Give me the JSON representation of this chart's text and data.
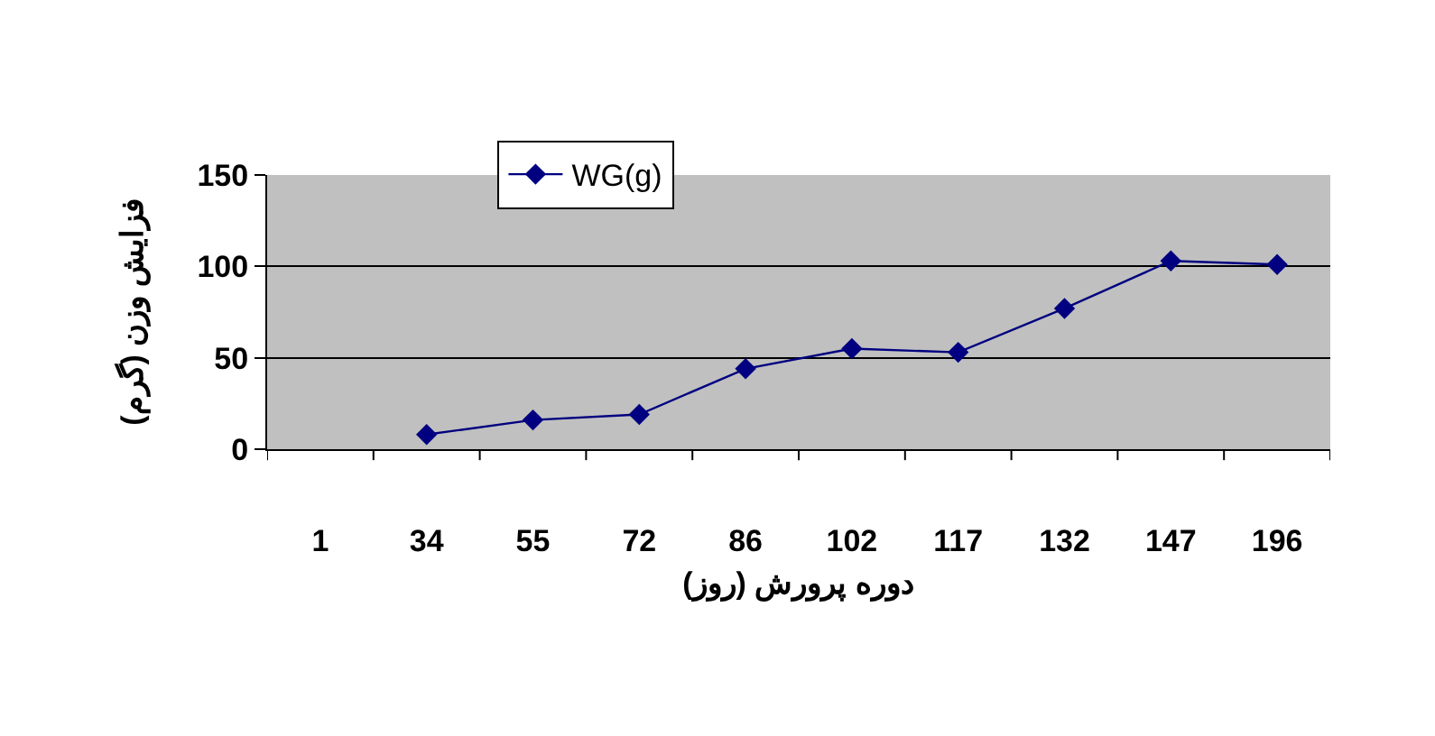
{
  "chart_data": {
    "type": "line",
    "xlabel": "دوره پرورش (روز)",
    "ylabel": "فزایش وزن (گرم)",
    "categories": [
      "1",
      "34",
      "55",
      "72",
      "86",
      "102",
      "117",
      "132",
      "147",
      "196"
    ],
    "series": [
      {
        "name": "WG(g)",
        "color": "#000080",
        "values": [
          null,
          8,
          16,
          19,
          44,
          55,
          53,
          77,
          103,
          101
        ]
      }
    ],
    "ylim": [
      0,
      150
    ],
    "yticks": [
      0,
      50,
      100,
      150
    ],
    "grid": "y",
    "legend": "top",
    "marker": "diamond",
    "line_style": "solid"
  }
}
